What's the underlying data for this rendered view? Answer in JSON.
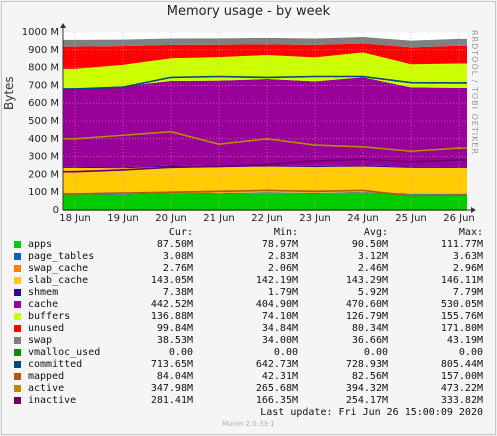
{
  "title": "Memory usage - by week",
  "side_label": "RRDTOOL / TOBI OETIKER",
  "footer": "Munin 2.0.33-1",
  "last_update": "Last update: Fri Jun 26 15:00:09 2020",
  "legend_header": {
    "cur": "Cur:",
    "min": "Min:",
    "avg": "Avg:",
    "max": "Max:"
  },
  "legend": [
    {
      "name": "apps",
      "color": "#00cc00",
      "cur": "87.50M",
      "min": "78.97M",
      "avg": "90.50M",
      "max": "111.77M"
    },
    {
      "name": "page_tables",
      "color": "#0066b3",
      "cur": "3.08M",
      "min": "2.83M",
      "avg": "3.12M",
      "max": "3.63M"
    },
    {
      "name": "swap_cache",
      "color": "#ff8000",
      "cur": "2.76M",
      "min": "2.06M",
      "avg": "2.46M",
      "max": "2.96M"
    },
    {
      "name": "slab_cache",
      "color": "#ffcc00",
      "cur": "143.05M",
      "min": "142.19M",
      "avg": "143.29M",
      "max": "146.11M"
    },
    {
      "name": "shmem",
      "color": "#330099",
      "cur": "7.38M",
      "min": "1.79M",
      "avg": "5.92M",
      "max": "7.79M"
    },
    {
      "name": "cache",
      "color": "#990099",
      "cur": "442.52M",
      "min": "404.90M",
      "avg": "470.60M",
      "max": "530.05M"
    },
    {
      "name": "buffers",
      "color": "#ccff00",
      "cur": "136.88M",
      "min": "74.10M",
      "avg": "126.79M",
      "max": "155.76M"
    },
    {
      "name": "unused",
      "color": "#ff0000",
      "cur": "99.84M",
      "min": "34.84M",
      "avg": "80.34M",
      "max": "171.80M"
    },
    {
      "name": "swap",
      "color": "#808080",
      "cur": "38.53M",
      "min": "34.00M",
      "avg": "36.66M",
      "max": "43.19M"
    },
    {
      "name": "vmalloc_used",
      "color": "#008f00",
      "cur": "0.00",
      "min": "0.00",
      "avg": "0.00",
      "max": "0.00"
    },
    {
      "name": "committed",
      "color": "#00487d",
      "cur": "713.65M",
      "min": "642.73M",
      "avg": "728.93M",
      "max": "805.44M"
    },
    {
      "name": "mapped",
      "color": "#b35a00",
      "cur": "84.04M",
      "min": "42.31M",
      "avg": "82.56M",
      "max": "157.00M"
    },
    {
      "name": "active",
      "color": "#b38f00",
      "cur": "347.98M",
      "min": "265.68M",
      "avg": "394.32M",
      "max": "473.22M"
    },
    {
      "name": "inactive",
      "color": "#6b006b",
      "cur": "281.41M",
      "min": "166.35M",
      "avg": "254.17M",
      "max": "333.82M"
    }
  ],
  "chart_data": {
    "type": "area",
    "title": "Memory usage - by week",
    "ylabel": "Bytes",
    "y_unit": "M",
    "ylim": [
      0,
      1000
    ],
    "y_ticks": [
      "0",
      "100 M",
      "200 M",
      "300 M",
      "400 M",
      "500 M",
      "600 M",
      "700 M",
      "800 M",
      "900 M",
      "1000 M"
    ],
    "categories": [
      "18 Jun",
      "19 Jun",
      "20 Jun",
      "21 Jun",
      "22 Jun",
      "23 Jun",
      "24 Jun",
      "25 Jun",
      "26 Jun"
    ],
    "grid": true,
    "stacked_series": [
      {
        "name": "apps",
        "values": [
          88,
          86,
          95,
          92,
          95,
          93,
          96,
          88,
          87.5
        ]
      },
      {
        "name": "page_tables",
        "values": [
          3.1,
          3.0,
          3.2,
          3.1,
          3.2,
          3.1,
          3.2,
          3.1,
          3.08
        ]
      },
      {
        "name": "swap_cache",
        "values": [
          2.5,
          2.4,
          2.5,
          2.4,
          2.5,
          2.5,
          2.5,
          2.6,
          2.76
        ]
      },
      {
        "name": "slab_cache",
        "values": [
          143,
          143,
          143,
          143,
          144,
          143,
          143,
          143,
          143.05
        ]
      },
      {
        "name": "shmem",
        "values": [
          6,
          6,
          6,
          6,
          6,
          6,
          6,
          7,
          7.38
        ]
      },
      {
        "name": "cache",
        "values": [
          440,
          455,
          475,
          480,
          485,
          475,
          495,
          445,
          442.52
        ]
      },
      {
        "name": "buffers",
        "values": [
          110,
          120,
          128,
          132,
          135,
          135,
          140,
          130,
          136.88
        ]
      },
      {
        "name": "unused",
        "values": [
          125,
          105,
          75,
          70,
          60,
          70,
          50,
          95,
          99.84
        ]
      },
      {
        "name": "swap",
        "values": [
          38,
          37,
          36,
          36,
          36,
          36,
          36,
          38,
          38.53
        ]
      }
    ],
    "line_series": [
      {
        "name": "vmalloc_used",
        "values": [
          0,
          0,
          0,
          0,
          0,
          0,
          0,
          0,
          0
        ]
      },
      {
        "name": "committed",
        "values": [
          680,
          690,
          745,
          750,
          745,
          750,
          750,
          715,
          713.65
        ]
      },
      {
        "name": "mapped",
        "values": [
          90,
          95,
          100,
          105,
          110,
          105,
          110,
          80,
          84.04
        ]
      },
      {
        "name": "active",
        "values": [
          400,
          420,
          440,
          370,
          400,
          365,
          355,
          330,
          347.98
        ]
      },
      {
        "name": "inactive",
        "values": [
          215,
          225,
          240,
          245,
          255,
          275,
          285,
          270,
          281.41
        ]
      }
    ]
  }
}
